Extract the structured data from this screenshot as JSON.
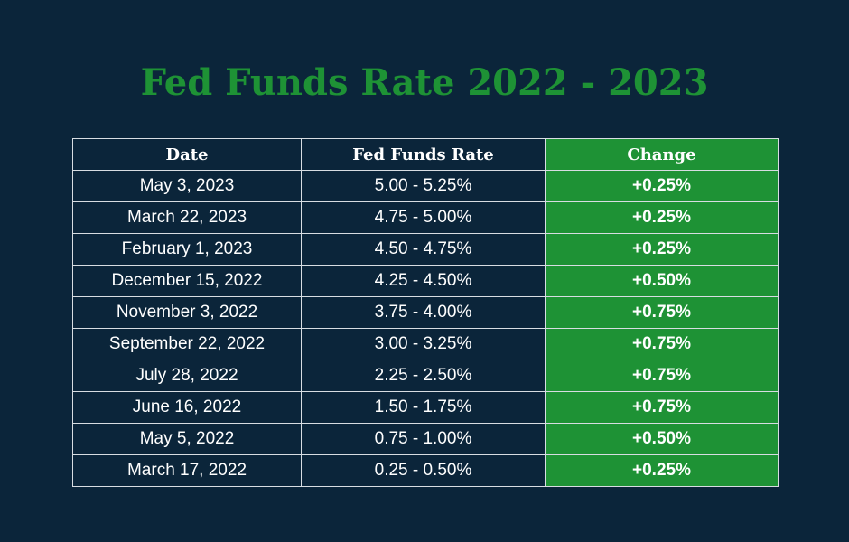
{
  "title": "Fed Funds Rate 2022 - 2023",
  "colors": {
    "background": "#0b253a",
    "title": "#1e9235",
    "change_column": "#1e9235",
    "text": "#ffffff",
    "grid": "#d8dde2"
  },
  "table": {
    "headers": {
      "date": "Date",
      "rate": "Fed Funds Rate",
      "change": "Change"
    },
    "rows": [
      {
        "date": "May 3, 2023",
        "rate": "5.00 - 5.25%",
        "change": "+0.25%"
      },
      {
        "date": "March 22, 2023",
        "rate": "4.75 - 5.00%",
        "change": "+0.25%"
      },
      {
        "date": "February 1, 2023",
        "rate": "4.50 - 4.75%",
        "change": "+0.25%"
      },
      {
        "date": "December 15, 2022",
        "rate": "4.25 - 4.50%",
        "change": "+0.50%"
      },
      {
        "date": "November 3, 2022",
        "rate": "3.75 - 4.00%",
        "change": "+0.75%"
      },
      {
        "date": "September 22, 2022",
        "rate": "3.00 - 3.25%",
        "change": "+0.75%"
      },
      {
        "date": "July 28, 2022",
        "rate": "2.25 - 2.50%",
        "change": "+0.75%"
      },
      {
        "date": "June 16, 2022",
        "rate": "1.50 - 1.75%",
        "change": "+0.75%"
      },
      {
        "date": "May 5, 2022",
        "rate": "0.75 - 1.00%",
        "change": "+0.50%"
      },
      {
        "date": "March 17, 2022",
        "rate": "0.25 - 0.50%",
        "change": "+0.25%"
      }
    ]
  }
}
